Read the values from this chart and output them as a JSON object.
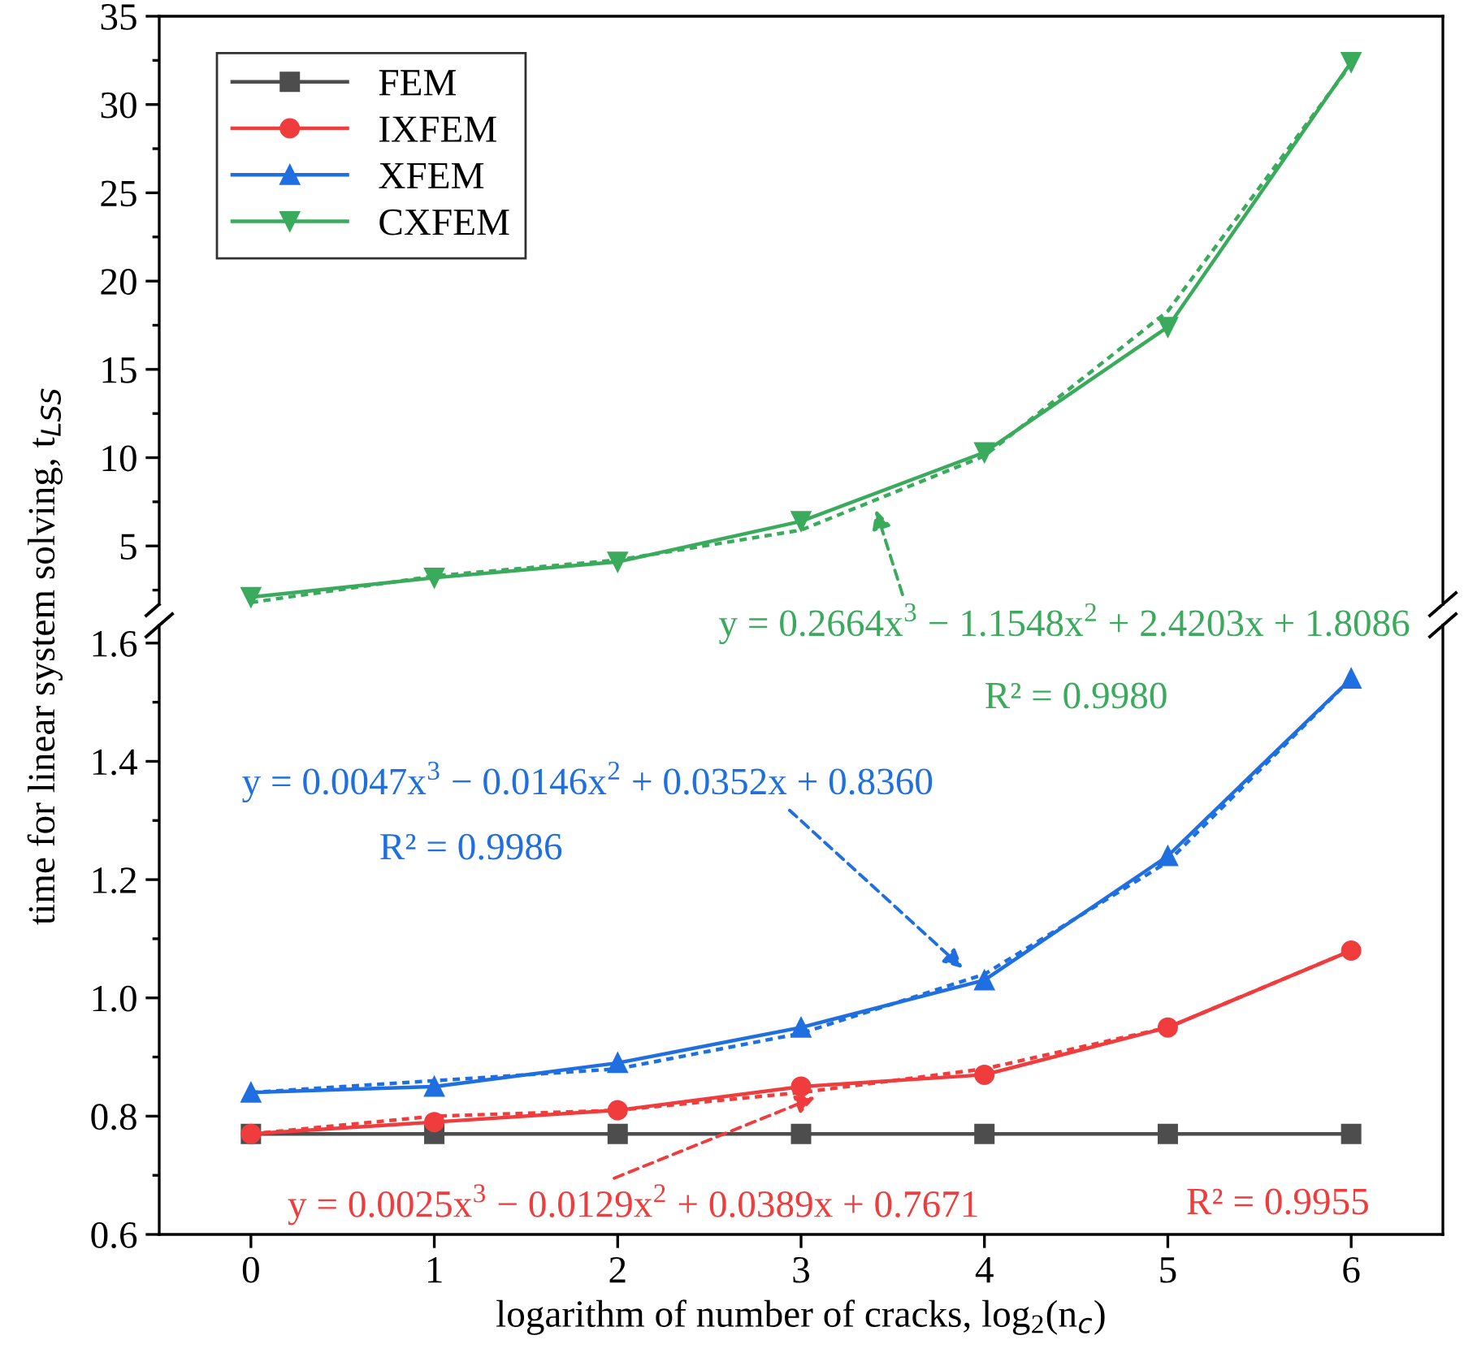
{
  "chart_data": [
    {
      "type": "line",
      "xlim": [
        -0.5,
        6.5
      ],
      "xticks": [
        0,
        1,
        2,
        3,
        4,
        5,
        6
      ],
      "ylim": [
        1.7,
        35
      ],
      "yticks": [
        5,
        10,
        15,
        20,
        25,
        30,
        35
      ],
      "tick_labels": "y",
      "legend": "top left",
      "grid": false,
      "series": [
        {
          "name": "CXFEM",
          "color": "#3aaa5c",
          "marker": "triangle_down",
          "line_style": "solid",
          "x": [
            0,
            1,
            2,
            3,
            4,
            5,
            6
          ],
          "values": [
            2.1,
            3.2,
            4.1,
            6.4,
            10.3,
            17.4,
            32.4
          ]
        },
        {
          "type": "line",
          "color": "#3aaa5c",
          "marker": "none",
          "line_style": "dotted",
          "x": [
            0,
            1,
            2,
            3,
            4,
            5,
            6
          ],
          "values": [
            1.8,
            3.3,
            4.2,
            5.9,
            10.1,
            18.3,
            32.3
          ]
        }
      ],
      "annotations": [
        {
          "text": "y = 0.2664x$^{3}$ − 1.1548x$^{2}$ + 2.4203x + 1.8086",
          "x": 3.4,
          "y": 7.3
        },
        "R² = 0.9980"
      ]
    },
    {
      "type": "line",
      "xlim": [
        -0.5,
        6.5
      ],
      "xticks": [
        0,
        1,
        2,
        3,
        4,
        5,
        6
      ],
      "ylim": [
        0.6,
        1.63
      ],
      "yticks": [
        {
          "value": 0.6,
          "label": "0.6"
        },
        {
          "value": 0.8,
          "label": "0.8"
        },
        {
          "value": 1.0,
          "label": "1.0"
        },
        {
          "value": 1.2,
          "label": "1.2"
        },
        {
          "value": 1.4,
          "label": "1.4"
        },
        {
          "value": 1.6,
          "label": "1.6"
        }
      ],
      "xlabel": "logarithm of number of cracks, log$_{2}$(n$_{c}$)",
      "ylabel": "time for linear system solving, t$_{LSS}$",
      "legend": "top left",
      "grid": false,
      "series": [
        {
          "name": "FEM",
          "color": "#4d4d4d",
          "marker": "square",
          "line_style": "solid",
          "x": [
            0,
            1,
            2,
            3,
            4,
            5,
            6
          ],
          "values": [
            0.77,
            0.77,
            0.77,
            0.77,
            0.77,
            0.77,
            0.77
          ]
        },
        {
          "name": "IXFEM",
          "color": "#f03c3c",
          "marker": "circle",
          "line_style": "solid",
          "x": [
            0,
            1,
            2,
            3,
            4,
            5,
            6
          ],
          "values": [
            0.77,
            0.79,
            0.81,
            0.85,
            0.87,
            0.95,
            1.08
          ]
        },
        {
          "name": "XFEM",
          "color": "#1f6fe0",
          "marker": "triangle",
          "line_style": "solid",
          "x": [
            0,
            1,
            2,
            3,
            4,
            5,
            6
          ],
          "values": [
            0.84,
            0.85,
            0.89,
            0.95,
            1.03,
            1.24,
            1.54
          ]
        },
        {
          "type": "line",
          "color": "#1f6fe0",
          "marker": "none",
          "line_style": "dotted",
          "x": [
            0,
            1,
            2,
            3,
            4,
            5,
            6
          ],
          "values": [
            0.84,
            0.86,
            0.88,
            0.94,
            1.04,
            1.23,
            1.54
          ]
        },
        {
          "type": "line",
          "color": "#f03c3c",
          "marker": "none",
          "line_style": "dotted",
          "x": [
            0,
            1,
            2,
            3,
            4,
            5,
            6
          ],
          "values": [
            0.77,
            0.8,
            0.81,
            0.84,
            0.88,
            0.95,
            1.08
          ]
        }
      ],
      "annotations": [
        {
          "text": "y = 0.0047x$^{3}$ − 0.0146x$^{2}$ + 0.0352x + 0.8360",
          "x": 3.9,
          "y": 1.045
        },
        "R² = 0.9986",
        {
          "text": "y = 0.0025x$^{3}$ − 0.0129x$^{2}$ + 0.0389x + 0.7671",
          "x": 3.1,
          "y": 0.835
        },
        "R² = 0.9955"
      ]
    }
  ]
}
